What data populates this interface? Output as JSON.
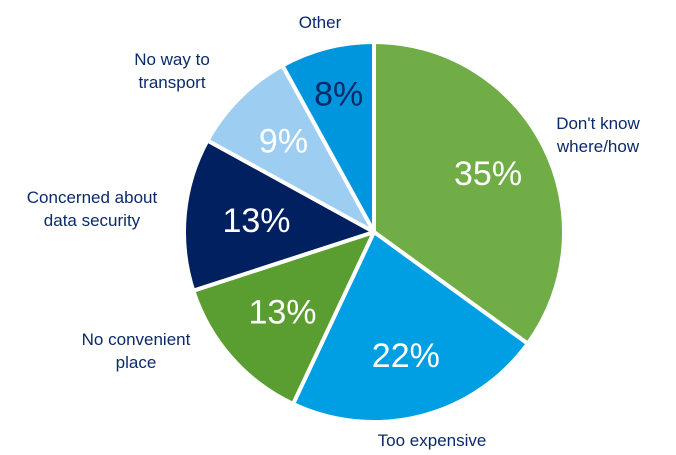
{
  "chart_data": {
    "type": "pie",
    "title": "",
    "unit": "%",
    "slices": [
      {
        "label": "Don't know where/how",
        "label_lines": [
          "Don't know",
          "where/how"
        ],
        "value": 35,
        "value_label": "35%",
        "color": "#70ad47",
        "text_color": "#ffffff"
      },
      {
        "label": "Too expensive",
        "label_lines": [
          "Too expensive"
        ],
        "value": 22,
        "value_label": "22%",
        "color": "#009ee3",
        "text_color": "#ffffff"
      },
      {
        "label": "No convenient place",
        "label_lines": [
          "No convenient",
          "place"
        ],
        "value": 13,
        "value_label": "13%",
        "color": "#5a9e32",
        "text_color": "#ffffff"
      },
      {
        "label": "Concerned about data security",
        "label_lines": [
          "Concerned about",
          "data security"
        ],
        "value": 13,
        "value_label": "13%",
        "color": "#002060",
        "text_color": "#ffffff"
      },
      {
        "label": "No way to transport",
        "label_lines": [
          "No way to",
          "transport"
        ],
        "value": 9,
        "value_label": "9%",
        "color": "#9dcdf0",
        "text_color": "#ffffff"
      },
      {
        "label": "Other",
        "label_lines": [
          "Other"
        ],
        "value": 8,
        "value_label": "8%",
        "color": "#0096dd",
        "text_color": "#0b2a6b"
      }
    ],
    "start_angle_deg": 0,
    "direction": "clockwise",
    "label_color": "#0b2a6b",
    "legend": "none"
  }
}
